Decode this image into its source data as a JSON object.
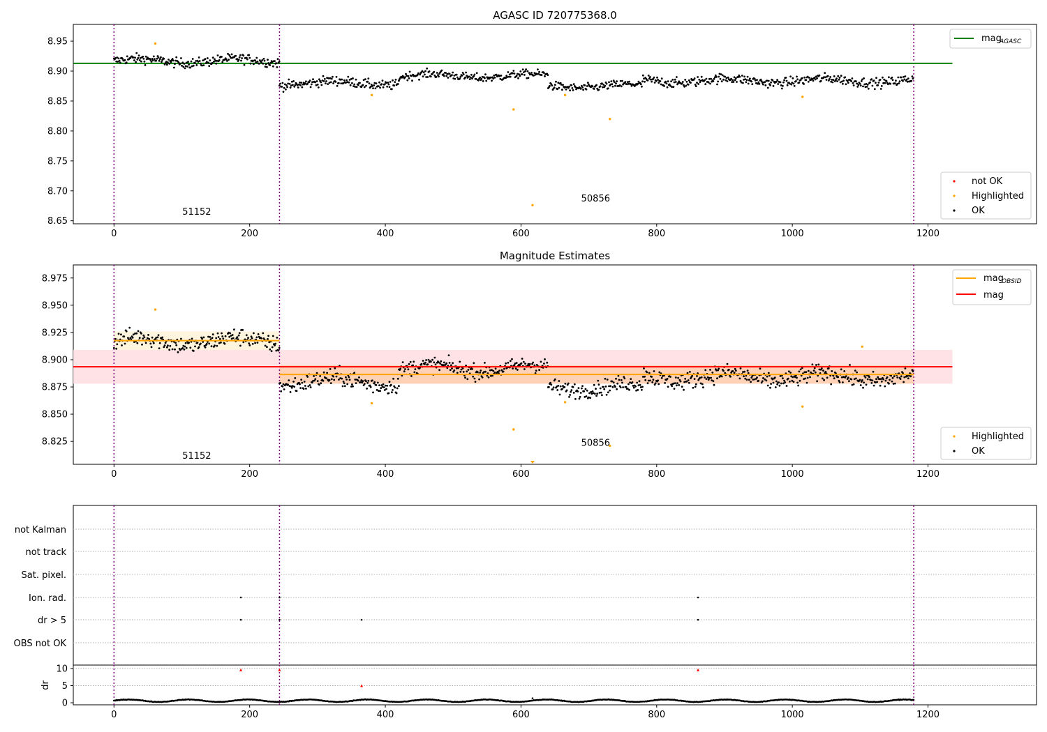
{
  "chart_data": [
    {
      "type": "scatter",
      "title": "AGASC ID 720775368.0",
      "xlim": [
        -60,
        1360
      ],
      "ylim": [
        8.645,
        8.978
      ],
      "xticks": [
        0,
        200,
        400,
        600,
        800,
        1000,
        1200
      ],
      "yticks": [
        8.65,
        8.7,
        8.75,
        8.8,
        8.85,
        8.9,
        8.95
      ],
      "vlines": [
        0,
        244,
        1179
      ],
      "hlines": [
        {
          "name": "mag_AGASC",
          "y": 8.913,
          "x": [
            -60,
            1236
          ],
          "color": "#008000"
        }
      ],
      "segments": [
        {
          "x": [
            0,
            244
          ],
          "mean": 8.917,
          "spread": 0.008
        },
        {
          "x": [
            244,
            420
          ],
          "mean": 8.88,
          "spread": 0.008
        },
        {
          "x": [
            420,
            640
          ],
          "mean": 8.892,
          "spread": 0.007
        },
        {
          "x": [
            640,
            780
          ],
          "mean": 8.875,
          "spread": 0.007
        },
        {
          "x": [
            780,
            1179
          ],
          "mean": 8.884,
          "spread": 0.008
        }
      ],
      "highlighted": [
        [
          61,
          8.946
        ],
        [
          380,
          8.86
        ],
        [
          589,
          8.836
        ],
        [
          617,
          8.676
        ],
        [
          665,
          8.86
        ],
        [
          731,
          8.82
        ],
        [
          1015,
          8.857
        ]
      ],
      "annotations": [
        {
          "text": "51152",
          "x": 122,
          "y": 8.66
        },
        {
          "text": "50856",
          "x": 710,
          "y": 8.682
        }
      ],
      "legend_top": {
        "label": "mag",
        "sub": "AGASC",
        "color": "#008000"
      },
      "legend_bottom": [
        {
          "label": "not OK",
          "color": "#ff0000"
        },
        {
          "label": "Highlighted",
          "color": "#ffa500"
        },
        {
          "label": "OK",
          "color": "#000000"
        }
      ]
    },
    {
      "type": "scatter",
      "title": "Magnitude Estimates",
      "xlim": [
        -60,
        1360
      ],
      "ylim": [
        8.804,
        8.987
      ],
      "xticks": [
        0,
        200,
        400,
        600,
        800,
        1000,
        1200
      ],
      "yticks": [
        8.825,
        8.85,
        8.875,
        8.9,
        8.925,
        8.95,
        8.975
      ],
      "vlines": [
        0,
        244,
        1179
      ],
      "bands": [
        {
          "x": [
            -60,
            1236
          ],
          "y": [
            8.878,
            8.909
          ],
          "color": "#ffdde0"
        },
        {
          "x": [
            0,
            244
          ],
          "y": [
            8.909,
            8.926
          ],
          "color": "#fff2d8"
        },
        {
          "x": [
            244,
            1179
          ],
          "y": [
            8.878,
            8.895
          ],
          "color": "#ffcfb0"
        }
      ],
      "hlines": [
        {
          "name": "mag",
          "y": 8.8935,
          "x": [
            -60,
            1236
          ],
          "color": "#ff0000"
        },
        {
          "name": "mag_OBSID_1",
          "y": 8.9175,
          "x": [
            0,
            244
          ],
          "color": "#ffa500"
        },
        {
          "name": "mag_OBSID_2",
          "y": 8.8865,
          "x": [
            244,
            1179
          ],
          "color": "#ffa500"
        }
      ],
      "segments": [
        {
          "x": [
            0,
            244
          ],
          "mean": 8.917,
          "spread": 0.008
        },
        {
          "x": [
            244,
            420
          ],
          "mean": 8.88,
          "spread": 0.008
        },
        {
          "x": [
            420,
            640
          ],
          "mean": 8.892,
          "spread": 0.007
        },
        {
          "x": [
            640,
            780
          ],
          "mean": 8.875,
          "spread": 0.007
        },
        {
          "x": [
            780,
            1179
          ],
          "mean": 8.884,
          "spread": 0.008
        }
      ],
      "highlighted": [
        [
          61,
          8.946
        ],
        [
          380,
          8.86
        ],
        [
          589,
          8.836
        ],
        [
          665,
          8.861
        ],
        [
          731,
          8.821
        ],
        [
          1015,
          8.857
        ],
        [
          1103,
          8.912
        ]
      ],
      "offscale_marker": {
        "x": 617,
        "color": "#ffa500"
      },
      "annotations": [
        {
          "text": "51152",
          "x": 122,
          "y": 8.809
        },
        {
          "text": "50856",
          "x": 710,
          "y": 8.821
        }
      ],
      "legend_top": [
        {
          "label": "mag",
          "sub": "OBSID",
          "color": "#ffa500"
        },
        {
          "label": "mag",
          "sub": "",
          "color": "#ff0000"
        }
      ],
      "legend_bottom": [
        {
          "label": "Highlighted",
          "color": "#ffa500"
        },
        {
          "label": "OK",
          "color": "#000000"
        }
      ]
    },
    {
      "type": "scatter",
      "title": "",
      "xlim": [
        -60,
        1360
      ],
      "categories": [
        "not Kalman",
        "not track",
        "Sat. pixel.",
        "Ion. rad.",
        "dr > 5",
        "OBS not OK"
      ],
      "vlines": [
        0,
        244,
        1179
      ],
      "flag_points": [
        {
          "category": "Ion. rad.",
          "x": [
            187,
            244,
            861
          ]
        },
        {
          "category": "dr > 5",
          "x": [
            187,
            244,
            365,
            861
          ]
        }
      ]
    },
    {
      "type": "scatter",
      "title": "",
      "xlim": [
        -60,
        1360
      ],
      "ylim": [
        -0.6,
        11
      ],
      "ylabel": "dr",
      "yticks": [
        0,
        5,
        10
      ],
      "xticks": [
        0,
        200,
        400,
        600,
        800,
        1000,
        1200
      ],
      "vlines": [
        0,
        244,
        1179
      ],
      "dr_baseline": {
        "x": [
          0,
          1179
        ],
        "mean": 0.6,
        "amplitude": 0.35
      },
      "flagged": [
        [
          187,
          9.6
        ],
        [
          244,
          9.6
        ],
        [
          365,
          5.0
        ],
        [
          861,
          9.6
        ]
      ],
      "outlier": [
        617,
        1.3
      ]
    }
  ]
}
